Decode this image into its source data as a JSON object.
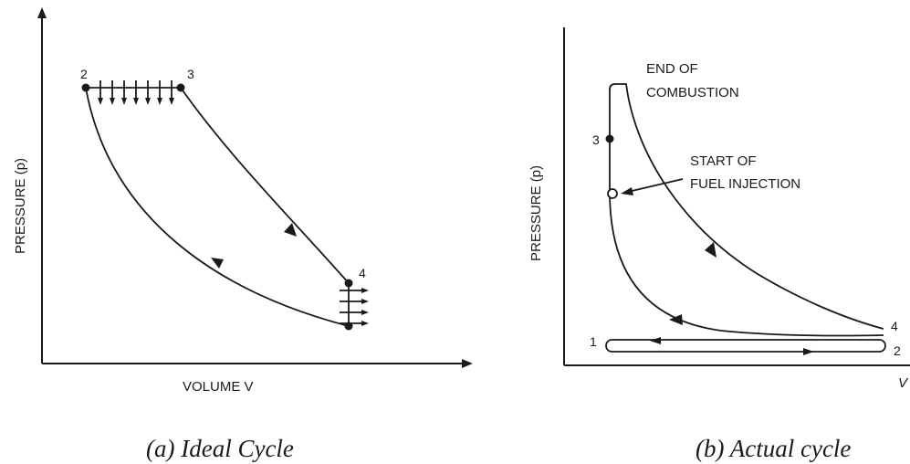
{
  "panel_a": {
    "y_axis_label": "PRESSURE  (p)",
    "x_axis_label": "VOLUME V",
    "caption": "(a) Ideal Cycle",
    "points": [
      "2",
      "3",
      "4"
    ]
  },
  "panel_b": {
    "y_axis_label": "PRESSURE  (p)",
    "x_axis_label": "V",
    "caption": "(b) Actual cycle",
    "points": [
      "1",
      "2",
      "3",
      "4"
    ],
    "annotation_end_line1": "END OF",
    "annotation_end_line2": "COMBUSTION",
    "annotation_start_line1": "START OF",
    "annotation_start_line2": "FUEL INJECTION"
  }
}
